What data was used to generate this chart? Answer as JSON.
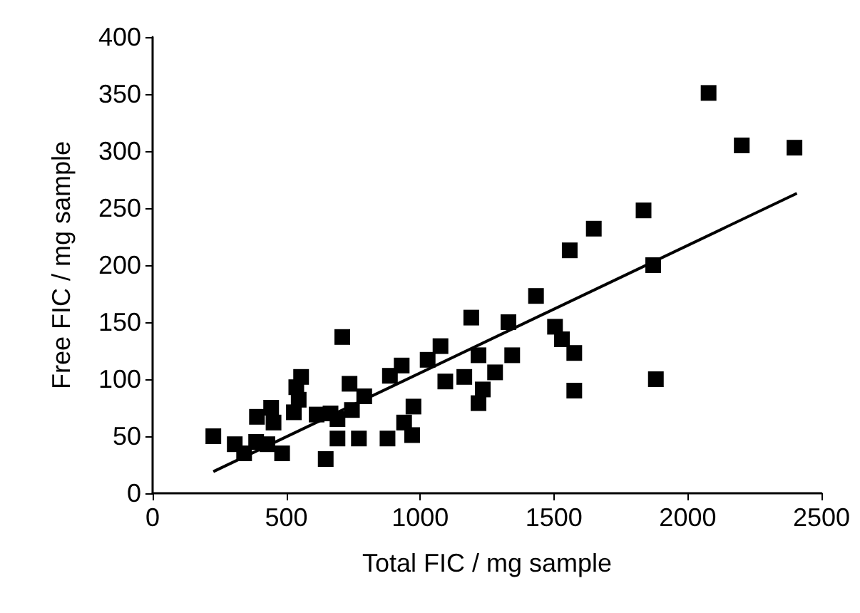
{
  "chart_data": {
    "type": "scatter",
    "xlabel": "Total FIC / mg sample",
    "ylabel": "Free FIC / mg sample",
    "marker": "square",
    "grid": false,
    "xlim": [
      0,
      2500
    ],
    "xticks": [
      0,
      500,
      1000,
      1500,
      2000,
      2500
    ],
    "ylim": [
      0,
      400
    ],
    "yticks": [
      0,
      50,
      100,
      150,
      200,
      250,
      300,
      350,
      400
    ],
    "series": [
      {
        "color": "#000000",
        "x": [
          227,
          307,
          342,
          387,
          390,
          443,
          429,
          452,
          484,
          528,
          546,
          537,
          555,
          613,
          647,
          665,
          691,
          691,
          709,
          736,
          745,
          791,
          771,
          878,
          887,
          931,
          940,
          970,
          975,
          1028,
          1076,
          1094,
          1165,
          1191,
          1218,
          1218,
          1234,
          1280,
          1330,
          1344,
          1433,
          1504,
          1530,
          1576,
          1576,
          1559,
          1649,
          1835,
          1871,
          1881,
          2078,
          2202,
          2399
        ],
        "values": [
          50,
          43,
          35,
          45,
          67,
          75,
          43,
          62,
          35,
          71,
          82,
          93,
          102,
          69,
          30,
          70,
          65,
          48,
          137,
          96,
          73,
          85,
          48,
          48,
          103,
          112,
          62,
          51,
          76,
          117,
          129,
          98,
          102,
          154,
          121,
          79,
          91,
          106,
          150,
          121,
          173,
          146,
          135,
          123,
          90,
          213,
          232,
          248,
          200,
          100,
          351,
          305,
          303
        ]
      },
      {
        "type": "line",
        "color": "#000000",
        "marker": "none",
        "x": [
          227,
          2408
        ],
        "values": [
          19,
          263
        ]
      }
    ]
  }
}
